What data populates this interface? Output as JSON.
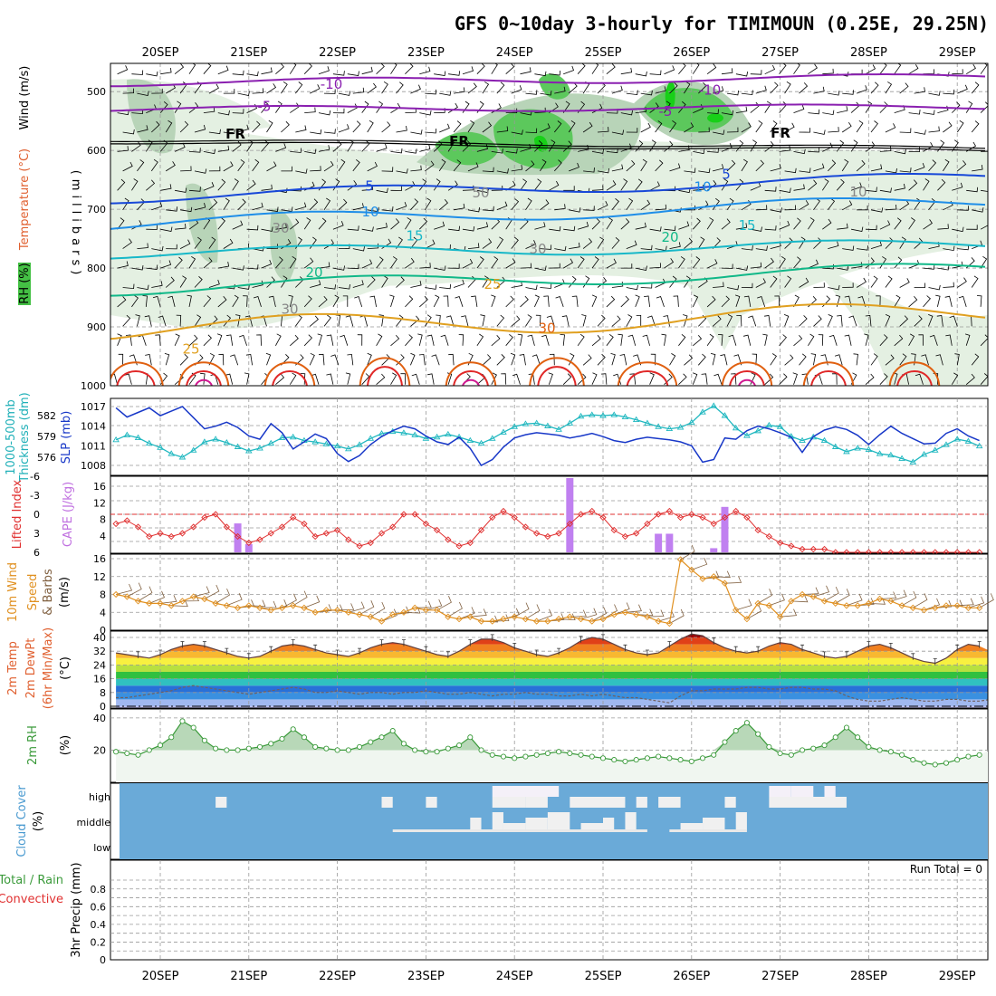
{
  "title": "GFS 0~10day 3-hourly for TIMIMOUN (0.25E, 29.25N)",
  "dates": [
    "20SEP",
    "21SEP",
    "22SEP",
    "23SEP",
    "24SEP",
    "25SEP",
    "26SEP",
    "27SEP",
    "28SEP",
    "29SEP"
  ],
  "colors": {
    "purple": "#8a1fb0",
    "blue_dark": "#1848d8",
    "blue_mid": "#1f8ee8",
    "cyan": "#18b8c8",
    "green_teal": "#10b888",
    "orange": "#e0a020",
    "orange_dark": "#e06010",
    "red": "#e02828",
    "magenta": "#d01890",
    "rh_light": "#e4f0e2",
    "rh_mid": "#b8d4b8",
    "rh_green": "#5cc85c",
    "slp": "#1838c8",
    "thick": "#20b8c0",
    "li": "#e03030",
    "cape": "#c080f0",
    "wind": "#e09020",
    "barb": "#806040",
    "rh2m": "#3a9a3a",
    "rh2m_fill": "#c8e0c8",
    "cloud": "#6aaad8"
  },
  "panels": {
    "upper": {
      "ylabel": "(millibars)",
      "side_labels": [
        "RH (%)",
        "Temperature (°C)",
        "Wind (m/s)"
      ],
      "yticks": [
        "500",
        "600",
        "700",
        "800",
        "900",
        "1000"
      ],
      "contour_labels": [
        {
          "text": "-10",
          "color": "purple"
        },
        {
          "text": "-10",
          "color": "purple"
        },
        {
          "text": "-5",
          "color": "purple"
        },
        {
          "text": "-5",
          "color": "purple"
        },
        {
          "text": "FR",
          "color": "black"
        },
        {
          "text": "FR",
          "color": "black"
        },
        {
          "text": "FR",
          "color": "black"
        },
        {
          "text": "5",
          "color": "blue_dark"
        },
        {
          "text": "5",
          "color": "blue_dark"
        },
        {
          "text": "10",
          "color": "blue_mid"
        },
        {
          "text": "10",
          "color": "blue_mid"
        },
        {
          "text": "15",
          "color": "cyan"
        },
        {
          "text": "15",
          "color": "cyan"
        },
        {
          "text": "20",
          "color": "green_teal"
        },
        {
          "text": "20",
          "color": "green_teal"
        },
        {
          "text": "25",
          "color": "orange"
        },
        {
          "text": "25",
          "color": "orange"
        },
        {
          "text": "30",
          "color": "orange_dark"
        },
        {
          "text": "30",
          "color": "gray"
        },
        {
          "text": "50",
          "color": "gray"
        },
        {
          "text": "30",
          "color": "gray"
        },
        {
          "text": "30",
          "color": "gray"
        },
        {
          "text": "10",
          "color": "gray"
        }
      ]
    },
    "slp": {
      "left_label_1": "1000-500mb",
      "left_label_2": "Thickness (dm)",
      "right_label": "SLP (mb)",
      "left_ticks": [
        "582",
        "579",
        "576"
      ],
      "right_ticks": [
        "1017",
        "1014",
        "1011",
        "1008"
      ]
    },
    "cape": {
      "left_label": "Lifted Index",
      "right_label": "CAPE (J/kg)",
      "left_ticks": [
        "-6",
        "-3",
        "0",
        "3",
        "6"
      ],
      "right_ticks": [
        "16",
        "12",
        "8",
        "4"
      ]
    },
    "wind": {
      "label_1": "10m Wind",
      "label_2": "Speed",
      "label_3": "& Barbs",
      "unit": "(m/s)",
      "yticks": [
        "16",
        "12",
        "8",
        "4",
        "0"
      ]
    },
    "temp": {
      "label_1": "2m Temp",
      "label_2": "2m DewPt",
      "label_3": "(6hr Min/Max)",
      "unit": "(°C)",
      "yticks": [
        "40",
        "32",
        "24",
        "16",
        "8",
        "0"
      ]
    },
    "rh2m": {
      "label": "2m RH",
      "unit": "(%)",
      "yticks": [
        "40",
        "20"
      ]
    },
    "cloud": {
      "label": "Cloud Cover",
      "unit": "(%)",
      "levels": [
        "high",
        "middle",
        "low"
      ]
    },
    "precip": {
      "label_1": "Total / Rain",
      "label_2": "Convective",
      "label_3": "3hr Precip (mm)",
      "yticks": [
        "0.8",
        "0.6",
        "0.4",
        "0.2",
        "0"
      ],
      "run_total": "Run Total = 0"
    }
  },
  "chart_data": [
    {
      "type": "line",
      "name": "sea-level-pressure-and-thickness",
      "x_unit": "3-hourly steps from 19SEP 12Z",
      "series": [
        {
          "name": "SLP (mb)",
          "values": [
            1016.8,
            1015.4,
            1016.1,
            1016.8,
            1015.6,
            1016.3,
            1017.0,
            1015.3,
            1013.6,
            1014.0,
            1014.6,
            1013.8,
            1012.5,
            1012.0,
            1014.4,
            1013.0,
            1010.5,
            1011.6,
            1012.8,
            1012.1,
            1009.8,
            1008.6,
            1009.5,
            1011.2,
            1012.4,
            1013.3,
            1014.0,
            1013.6,
            1012.5,
            1011.6,
            1011.2,
            1012.3,
            1010.6,
            1008.0,
            1008.9,
            1010.8,
            1012.2,
            1012.7,
            1013.0,
            1012.8,
            1012.6,
            1012.2,
            1012.5,
            1012.9,
            1012.4,
            1011.8,
            1011.5,
            1012.0,
            1012.3,
            1012.1,
            1011.9,
            1011.6,
            1011.0,
            1008.5,
            1008.9,
            1012.2,
            1012.0,
            1013.3,
            1014.0,
            1013.6,
            1013.0,
            1012.3,
            1010.0,
            1012.4,
            1013.4,
            1013.9,
            1013.5,
            1012.6,
            1011.2,
            1012.7,
            1014.0,
            1012.9,
            1012.1,
            1011.3,
            1011.4,
            1012.9,
            1013.6,
            1012.5,
            1011.8,
            1011.0,
            1012.1,
            1013.8
          ]
        },
        {
          "name": "Thickness (dm)",
          "values": [
            578.5,
            579.2,
            578.8,
            578.0,
            577.4,
            576.5,
            576.0,
            577.0,
            578.2,
            578.6,
            578.1,
            577.5,
            576.9,
            577.3,
            578.0,
            578.8,
            578.9,
            578.4,
            578.2,
            577.9,
            577.6,
            577.2,
            577.8,
            578.7,
            579.4,
            579.7,
            579.5,
            579.2,
            578.7,
            578.9,
            579.3,
            578.9,
            578.4,
            578.0,
            578.7,
            579.6,
            580.4,
            580.8,
            580.9,
            580.5,
            580.0,
            580.9,
            581.9,
            582.1,
            582.0,
            582.1,
            581.8,
            581.4,
            580.9,
            580.4,
            580.1,
            580.3,
            581.0,
            582.5,
            583.4,
            582.0,
            580.2,
            579.1,
            579.8,
            580.6,
            580.4,
            579.0,
            578.4,
            578.9,
            578.4,
            577.5,
            576.8,
            577.3,
            577.1,
            576.5,
            576.3,
            575.8,
            575.3,
            576.4,
            577.0,
            577.8,
            578.6,
            578.3,
            577.6,
            577.0,
            577.4,
            576.6
          ]
        }
      ],
      "left_axis": {
        "label": "1000-500mb Thickness (dm)",
        "ticks": [
          582,
          579,
          576
        ]
      },
      "right_axis": {
        "label": "SLP (mb)",
        "ticks": [
          1017,
          1014,
          1011,
          1008
        ]
      }
    },
    {
      "type": "line",
      "name": "lifted-index",
      "y_unit": "Lifted Index",
      "yrange": [
        6,
        -6
      ],
      "values": [
        1.5,
        1.0,
        2.0,
        3.5,
        3.0,
        3.5,
        3.0,
        2.0,
        0.5,
        0.0,
        2.0,
        3.5,
        4.5,
        4.0,
        3.0,
        2.0,
        0.5,
        1.5,
        3.5,
        3.0,
        2.5,
        4.0,
        5.0,
        4.5,
        3.0,
        2.0,
        0.0,
        0.0,
        1.5,
        2.5,
        4.0,
        5.0,
        4.5,
        2.5,
        0.5,
        -0.5,
        0.5,
        2.0,
        3.0,
        3.5,
        3.0,
        1.5,
        0.0,
        -0.5,
        0.5,
        2.5,
        3.5,
        3.0,
        1.5,
        0.0,
        -0.5,
        0.5,
        0.0,
        0.5,
        1.5,
        0.5,
        -0.5,
        0.5,
        2.5,
        3.5,
        4.5,
        5.0,
        5.5,
        5.5,
        5.5,
        6.0,
        6.5,
        6.0,
        7.0,
        6.5,
        6.5,
        6.5,
        6.5,
        6.0,
        6.5,
        6.5,
        6.5,
        6.0,
        6.5,
        6.5,
        6.5,
        6.5
      ],
      "zero_line": true
    },
    {
      "type": "bar",
      "name": "cape",
      "y_unit": "CAPE (J/kg)",
      "yrange": [
        0,
        18
      ],
      "bars": [
        {
          "x": 11,
          "value": 7
        },
        {
          "x": 12,
          "value": 2
        },
        {
          "x": 41,
          "value": 18
        },
        {
          "x": 49,
          "value": 4.5
        },
        {
          "x": 50,
          "value": 4.5
        },
        {
          "x": 54,
          "value": 1
        },
        {
          "x": 55,
          "value": 11
        }
      ]
    },
    {
      "type": "line",
      "name": "10m-wind-speed",
      "y_unit": "m/s",
      "yrange": [
        0,
        16
      ],
      "values": [
        8.0,
        7.5,
        6.5,
        6.0,
        6.0,
        5.5,
        6.5,
        7.5,
        7.0,
        6.0,
        5.5,
        5.0,
        5.5,
        5.0,
        4.5,
        5.0,
        5.5,
        5.0,
        4.0,
        4.5,
        4.5,
        4.0,
        3.5,
        3.0,
        2.0,
        3.5,
        4.0,
        5.0,
        4.5,
        4.5,
        3.0,
        2.5,
        3.0,
        2.0,
        2.0,
        2.5,
        3.0,
        2.5,
        2.0,
        2.0,
        2.5,
        3.0,
        2.5,
        2.0,
        2.5,
        3.5,
        4.0,
        3.5,
        3.0,
        2.0,
        1.5,
        15.8,
        13.5,
        11.5,
        12.0,
        10.5,
        4.5,
        2.5,
        6.0,
        5.5,
        3.0,
        6.5,
        8.0,
        7.5,
        6.5,
        6.0,
        5.5,
        5.5,
        6.0,
        7.0,
        6.5,
        5.5,
        5.0,
        4.5,
        5.0,
        5.5,
        5.5,
        5.0,
        5.0,
        6.0,
        6.5,
        7.0
      ]
    },
    {
      "type": "area",
      "name": "2m-temperature-and-dewpoint",
      "y_unit": "°C",
      "yrange": [
        0,
        42
      ],
      "series": [
        {
          "name": "2m Temp",
          "values": [
            31,
            30,
            29,
            28,
            30,
            33,
            35,
            36,
            35,
            33,
            31,
            29,
            28,
            29,
            32,
            35,
            36,
            35,
            33,
            31,
            30,
            29,
            31,
            34,
            36,
            37,
            36,
            34,
            32,
            30,
            29,
            32,
            36,
            39,
            39,
            37,
            34,
            32,
            30,
            29,
            31,
            34,
            38,
            40,
            39,
            36,
            33,
            31,
            30,
            31,
            35,
            39,
            42,
            41,
            37,
            34,
            32,
            31,
            32,
            35,
            37,
            36,
            33,
            31,
            29,
            28,
            29,
            32,
            35,
            36,
            34,
            31,
            28,
            26,
            25,
            28,
            33,
            36,
            35,
            32,
            29,
            27
          ]
        },
        {
          "name": "2m DewPt",
          "values": [
            5,
            5,
            6,
            7,
            8,
            9,
            11,
            12,
            11,
            10,
            9,
            8,
            7,
            8,
            9,
            10,
            11,
            10,
            8,
            8,
            9,
            8,
            7,
            8,
            8,
            7,
            8,
            8,
            9,
            8,
            7,
            7,
            8,
            7,
            6,
            7,
            7,
            8,
            7,
            7,
            6,
            6,
            7,
            6,
            7,
            6,
            5,
            5,
            4,
            3,
            2,
            6,
            9,
            9,
            10,
            10,
            10,
            11,
            11,
            10,
            10,
            11,
            11,
            10,
            10,
            9,
            6,
            4,
            3,
            3,
            4,
            5,
            4,
            3,
            3,
            4,
            4,
            3,
            3,
            4,
            5,
            6
          ]
        }
      ]
    },
    {
      "type": "area",
      "name": "2m-relative-humidity",
      "y_unit": "%",
      "yrange": [
        0,
        45
      ],
      "values": [
        19,
        18,
        17,
        20,
        23,
        28,
        38,
        34,
        26,
        21,
        20,
        20,
        21,
        22,
        24,
        27,
        33,
        28,
        22,
        21,
        20,
        20,
        22,
        25,
        28,
        32,
        24,
        20,
        19,
        19,
        21,
        23,
        28,
        20,
        17,
        16,
        15,
        16,
        17,
        18,
        19,
        18,
        17,
        16,
        15,
        14,
        13,
        14,
        15,
        16,
        15,
        14,
        13,
        15,
        17,
        25,
        32,
        37,
        30,
        22,
        18,
        17,
        20,
        21,
        23,
        28,
        34,
        28,
        22,
        20,
        19,
        17,
        14,
        12,
        11,
        12,
        14,
        16,
        17,
        20,
        24,
        26
      ]
    },
    {
      "type": "heatmap",
      "name": "cloud-cover",
      "levels": [
        "high",
        "middle",
        "low"
      ],
      "clear_blocks": [
        {
          "x0": 9,
          "x1": 10,
          "row": 1,
          "level": "high"
        },
        {
          "x0": 24,
          "x1": 25,
          "row": 1,
          "level": "high"
        },
        {
          "x0": 28,
          "x1": 29,
          "row": 1,
          "level": "high"
        },
        {
          "x0": 34,
          "x1": 40,
          "row": 0,
          "level": "high"
        },
        {
          "x0": 34,
          "x1": 37,
          "row": 1,
          "level": "high"
        },
        {
          "x0": 37,
          "x1": 39,
          "row": 1,
          "level": "high"
        },
        {
          "x0": 38,
          "x1": 40,
          "row": 0,
          "level": "high"
        },
        {
          "x0": 41,
          "x1": 44,
          "row": 1,
          "level": "high"
        },
        {
          "x0": 43,
          "x1": 46,
          "row": 1,
          "level": "high"
        },
        {
          "x0": 47,
          "x1": 48,
          "row": 1,
          "level": "high"
        },
        {
          "x0": 49,
          "x1": 51,
          "row": 1,
          "level": "high"
        },
        {
          "x0": 55,
          "x1": 56,
          "row": 1,
          "level": "high"
        },
        {
          "x0": 59,
          "x1": 61,
          "row": 0,
          "level": "high"
        },
        {
          "x0": 59,
          "x1": 66,
          "row": 1,
          "level": "high"
        },
        {
          "x0": 61,
          "x1": 63,
          "row": 0,
          "level": "high"
        },
        {
          "x0": 64,
          "x1": 65,
          "row": 0,
          "level": "high"
        },
        {
          "x0": 32,
          "x1": 33,
          "row": 2,
          "level": "middle"
        },
        {
          "x0": 34,
          "x1": 35,
          "row": 2,
          "level": "middle"
        },
        {
          "x0": 35,
          "x1": 37,
          "row": 2,
          "level": "middle"
        },
        {
          "x0": 37,
          "x1": 39,
          "row": 2,
          "level": "middle"
        },
        {
          "x0": 39,
          "x1": 41,
          "row": 2,
          "level": "middle"
        },
        {
          "x0": 42,
          "x1": 44,
          "row": 2,
          "level": "middle"
        },
        {
          "x0": 44,
          "x1": 45,
          "row": 2,
          "level": "middle"
        },
        {
          "x0": 46,
          "x1": 47,
          "row": 2,
          "level": "middle"
        },
        {
          "x0": 51,
          "x1": 53,
          "row": 2,
          "level": "middle"
        },
        {
          "x0": 53,
          "x1": 55,
          "row": 2,
          "level": "middle"
        },
        {
          "x0": 56,
          "x1": 57,
          "row": 2,
          "level": "middle"
        },
        {
          "x0": 25,
          "x1": 48,
          "row": 3,
          "level": "middle"
        },
        {
          "x0": 50,
          "x1": 57,
          "row": 3,
          "level": "middle"
        }
      ]
    },
    {
      "type": "bar",
      "name": "3hr-precipitation",
      "y_unit": "mm",
      "yrange": [
        0,
        1
      ],
      "bars": [],
      "run_total": 0
    }
  ]
}
